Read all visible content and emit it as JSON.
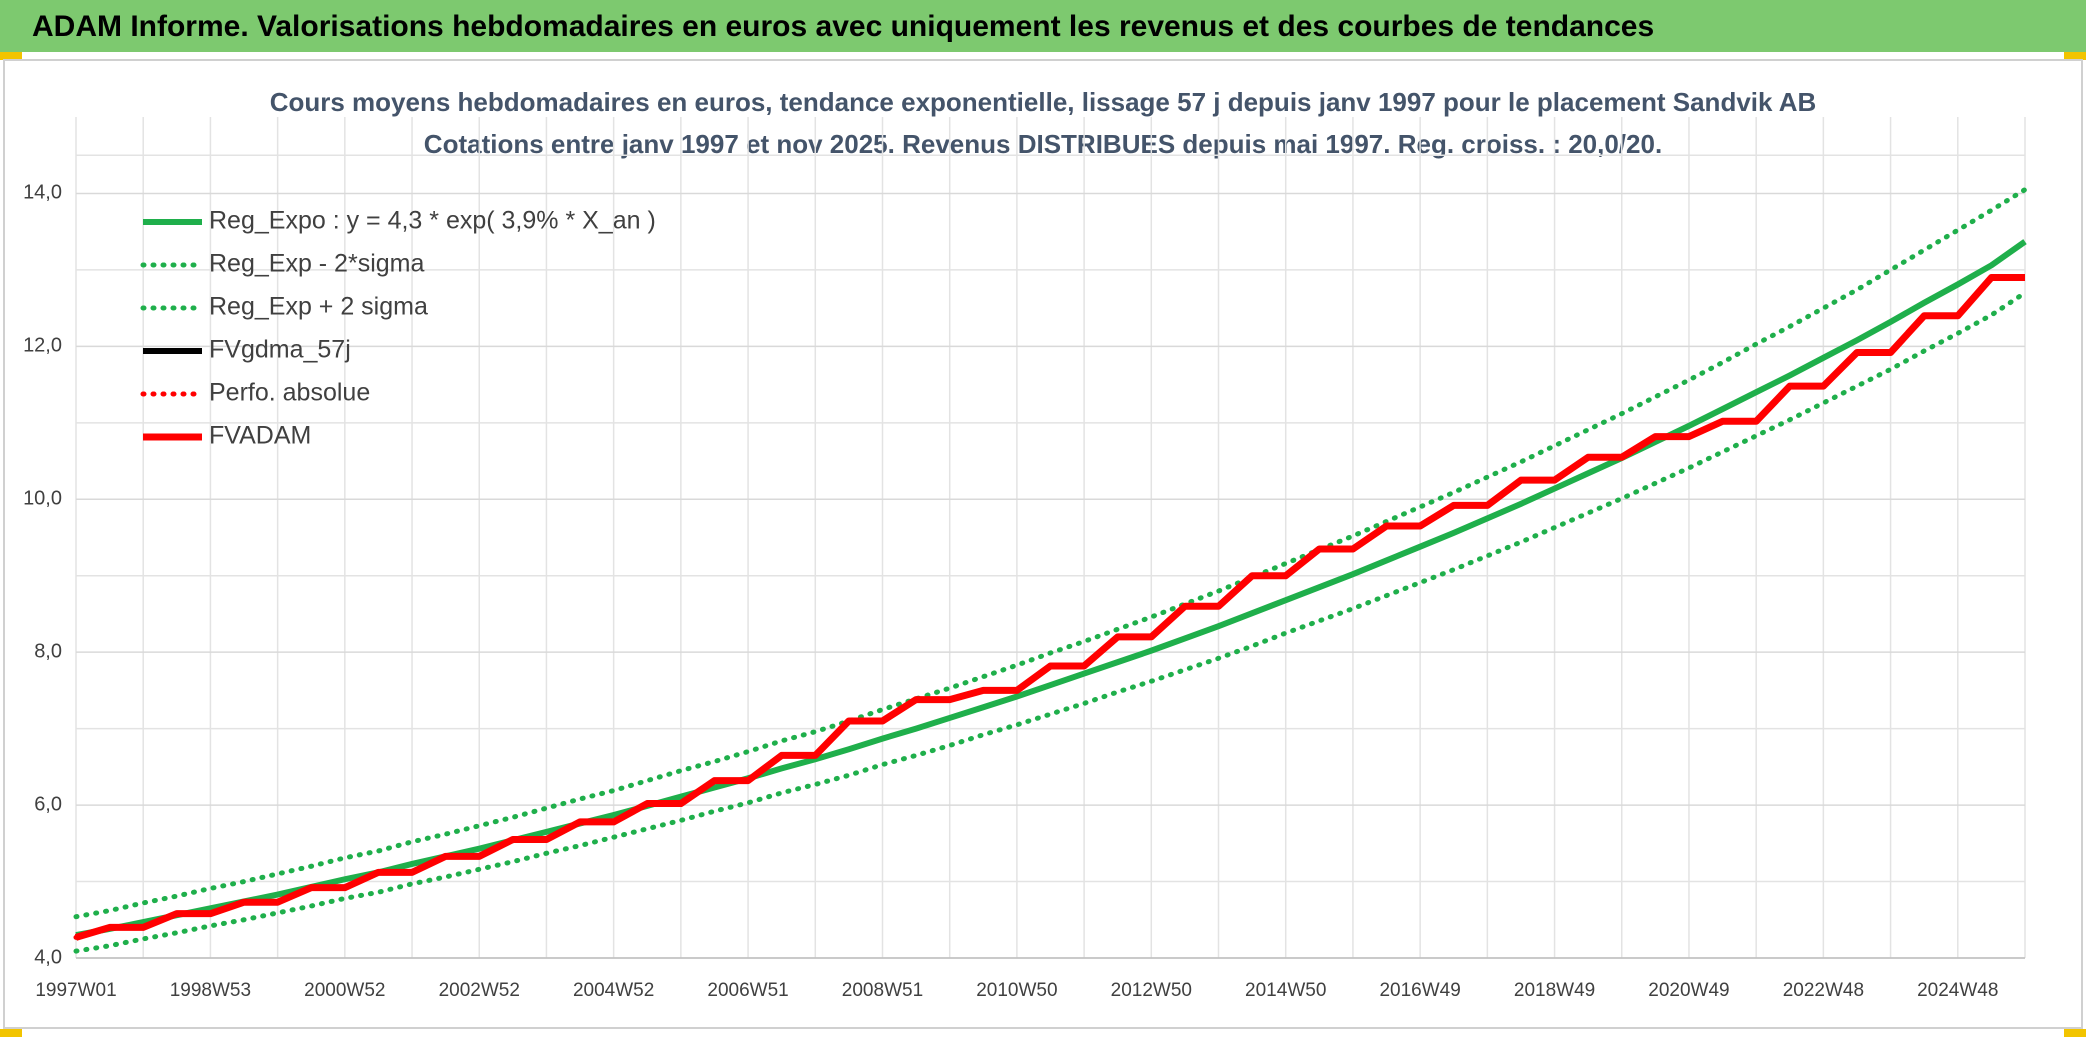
{
  "chart_data": {
    "type": "line",
    "title": "ADAM Informe. Valorisations hebdomadaires en euros avec uniquement les revenus et des courbes de tendances",
    "subtitle": [
      "Cours moyens hebdomadaires en euros, tendance exponentielle, lissage 57 j depuis janv 1997 pour le placement Sandvik AB",
      "Cotations entre janv 1997 et nov 2025. Revenus DISTRIBUES depuis mai 1997. Reg. croiss. : 20,0/20."
    ],
    "categories": [
      "1997W01",
      null,
      null,
      null,
      "1998W53",
      null,
      null,
      null,
      "2000W52",
      null,
      null,
      null,
      "2002W52",
      null,
      null,
      null,
      "2004W52",
      null,
      null,
      null,
      "2006W51",
      null,
      null,
      null,
      "2008W51",
      null,
      null,
      null,
      "2010W50",
      null,
      null,
      null,
      "2012W50",
      null,
      null,
      null,
      "2014W50",
      null,
      null,
      null,
      "2016W49",
      null,
      null,
      null,
      "2018W49",
      null,
      null,
      null,
      "2020W49",
      null,
      null,
      null,
      "2022W48",
      null,
      null,
      null,
      "2024W48",
      null,
      null
    ],
    "ylim": [
      4,
      15
    ],
    "yticks": [
      {
        "value": 4,
        "label": "4,0"
      },
      {
        "value": 6,
        "label": "6,0"
      },
      {
        "value": 8,
        "label": "8,0"
      },
      {
        "value": 10,
        "label": "10,0"
      },
      {
        "value": 12,
        "label": "12,0"
      },
      {
        "value": 14,
        "label": "14,0"
      }
    ],
    "grid": true,
    "legend": "upper left",
    "series": [
      {
        "name": "Reg_Expo : y = 4,3 * exp( 3,9% *  X_an )",
        "color": "#1faf4b",
        "style": "solid",
        "values": [
          4.3,
          4.38,
          4.47,
          4.56,
          4.65,
          4.74,
          4.83,
          4.93,
          5.03,
          5.12,
          5.23,
          5.33,
          5.43,
          5.54,
          5.65,
          5.76,
          5.87,
          5.99,
          6.11,
          6.23,
          6.35,
          6.48,
          6.6,
          6.73,
          6.87,
          7.0,
          7.14,
          7.28,
          7.42,
          7.57,
          7.72,
          7.87,
          8.02,
          8.18,
          8.34,
          8.51,
          8.68,
          8.85,
          9.02,
          9.2,
          9.38,
          9.56,
          9.75,
          9.94,
          10.14,
          10.34,
          10.54,
          10.75,
          10.96,
          11.18,
          11.4,
          11.62,
          11.85,
          12.08,
          12.32,
          12.57,
          12.81,
          13.06,
          13.37
        ]
      },
      {
        "name": "Reg_Exp - 2*sigma",
        "color": "#1faf4b",
        "style": "dotted",
        "values": [
          4.09,
          4.16,
          4.25,
          4.33,
          4.42,
          4.5,
          4.59,
          4.68,
          4.78,
          4.86,
          4.97,
          5.06,
          5.16,
          5.26,
          5.37,
          5.47,
          5.58,
          5.69,
          5.8,
          5.92,
          6.03,
          6.16,
          6.27,
          6.39,
          6.53,
          6.65,
          6.78,
          6.92,
          7.05,
          7.19,
          7.33,
          7.48,
          7.62,
          7.77,
          7.92,
          8.08,
          8.25,
          8.41,
          8.57,
          8.74,
          8.91,
          9.08,
          9.26,
          9.44,
          9.63,
          9.82,
          10.01,
          10.21,
          10.41,
          10.62,
          10.83,
          11.04,
          11.26,
          11.48,
          11.7,
          11.94,
          12.17,
          12.41,
          12.7
        ]
      },
      {
        "name": "Reg_Exp + 2 sigma",
        "color": "#1faf4b",
        "style": "dotted",
        "values": [
          4.54,
          4.62,
          4.72,
          4.81,
          4.91,
          5.0,
          5.1,
          5.2,
          5.31,
          5.4,
          5.52,
          5.62,
          5.73,
          5.84,
          5.96,
          6.08,
          6.19,
          6.32,
          6.45,
          6.57,
          6.7,
          6.84,
          6.96,
          7.1,
          7.25,
          7.39,
          7.53,
          7.68,
          7.83,
          7.99,
          8.14,
          8.3,
          8.46,
          8.63,
          8.8,
          8.98,
          9.16,
          9.34,
          9.52,
          9.71,
          9.9,
          10.09,
          10.29,
          10.49,
          10.7,
          10.91,
          11.12,
          11.34,
          11.56,
          11.79,
          12.03,
          12.26,
          12.5,
          12.74,
          13.0,
          13.26,
          13.52,
          13.78,
          14.05
        ]
      },
      {
        "name": "FVgdma_57j",
        "color": "#000000",
        "style": "solid",
        "values": [
          4.27,
          4.4,
          4.4,
          4.58,
          4.58,
          4.73,
          4.73,
          4.92,
          4.92,
          5.12,
          5.12,
          5.33,
          5.33,
          5.55,
          5.55,
          5.78,
          5.78,
          6.02,
          6.02,
          6.32,
          6.32,
          6.65,
          6.65,
          7.1,
          7.1,
          7.38,
          7.38,
          7.5,
          7.5,
          7.82,
          7.82,
          8.2,
          8.2,
          8.6,
          8.6,
          9.0,
          9.0,
          9.35,
          9.35,
          9.65,
          9.65,
          9.92,
          9.92,
          10.25,
          10.25,
          10.55,
          10.55,
          10.82,
          10.82,
          11.02,
          11.02,
          11.48,
          11.48,
          11.92,
          11.92,
          12.4,
          12.4,
          12.9,
          12.9
        ]
      },
      {
        "name": "Perfo. absolue",
        "color": "#ff0000",
        "style": "dotted",
        "values": [
          4.27,
          4.4,
          4.4,
          4.58,
          4.58,
          4.73,
          4.73,
          4.92,
          4.92,
          5.12,
          5.12,
          5.33,
          5.33,
          5.55,
          5.55,
          5.78,
          5.78,
          6.02,
          6.02,
          6.32,
          6.32,
          6.65,
          6.65,
          7.1,
          7.1,
          7.38,
          7.38,
          7.5,
          7.5,
          7.82,
          7.82,
          8.2,
          8.2,
          8.6,
          8.6,
          9.0,
          9.0,
          9.35,
          9.35,
          9.65,
          9.65,
          9.92,
          9.92,
          10.25,
          10.25,
          10.55,
          10.55,
          10.82,
          10.82,
          11.02,
          11.02,
          11.48,
          11.48,
          11.92,
          11.92,
          12.4,
          12.4,
          12.9,
          12.9
        ]
      },
      {
        "name": "FVADAM",
        "color": "#ff0000",
        "style": "solid",
        "values": [
          4.27,
          4.4,
          4.4,
          4.58,
          4.58,
          4.73,
          4.73,
          4.92,
          4.92,
          5.12,
          5.12,
          5.33,
          5.33,
          5.55,
          5.55,
          5.78,
          5.78,
          6.02,
          6.02,
          6.32,
          6.32,
          6.65,
          6.65,
          7.1,
          7.1,
          7.38,
          7.38,
          7.5,
          7.5,
          7.82,
          7.82,
          8.2,
          8.2,
          8.6,
          8.6,
          9.0,
          9.0,
          9.35,
          9.35,
          9.65,
          9.65,
          9.92,
          9.92,
          10.25,
          10.25,
          10.55,
          10.55,
          10.82,
          10.82,
          11.02,
          11.02,
          11.48,
          11.48,
          11.92,
          11.92,
          12.4,
          12.4,
          12.9,
          12.9
        ]
      }
    ]
  }
}
